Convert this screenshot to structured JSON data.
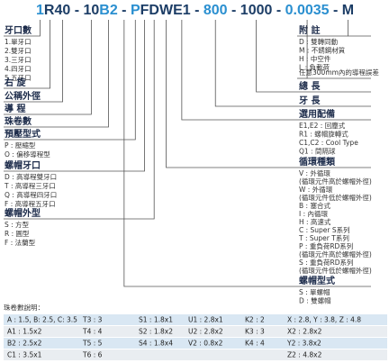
{
  "code": [
    {
      "text": "1",
      "color": "#2a8fd0"
    },
    {
      "text": "R40",
      "color": "#1c3d66"
    },
    {
      "text": " - ",
      "color": "#1c3d66"
    },
    {
      "text": "10",
      "color": "#1c3d66"
    },
    {
      "text": "B2",
      "color": "#2a8fd0"
    },
    {
      "text": " - ",
      "color": "#1c3d66"
    },
    {
      "text": "P",
      "color": "#2a8fd0"
    },
    {
      "text": "F",
      "color": "#1c3d66"
    },
    {
      "text": "D",
      "color": "#1c3d66"
    },
    {
      "text": "W",
      "color": "#1c3d66"
    },
    {
      "text": "E1",
      "color": "#1c3d66"
    },
    {
      "text": " - ",
      "color": "#1c3d66"
    },
    {
      "text": "800",
      "color": "#2a8fd0"
    },
    {
      "text": " - ",
      "color": "#1c3d66"
    },
    {
      "text": "1000",
      "color": "#1c3d66"
    },
    {
      "text": " - ",
      "color": "#1c3d66"
    },
    {
      "text": "0.0035",
      "color": "#2a8fd0"
    },
    {
      "text": " - ",
      "color": "#1c3d66"
    },
    {
      "text": "M",
      "color": "#1c3d66"
    }
  ],
  "left": [
    {
      "heading": "牙口數",
      "items": [
        "1.單牙口",
        "2.雙牙口",
        "3.三牙口",
        "4.四牙口",
        "5.五牙口"
      ]
    },
    {
      "heading": "右 旋",
      "items": []
    },
    {
      "heading": "公稱外徑",
      "items": []
    },
    {
      "heading": "導 程",
      "items": []
    },
    {
      "heading": "珠卷數",
      "items": []
    },
    {
      "heading": "預壓型式",
      "items": [
        "P : 壓縮型",
        "O : 偏移導程型"
      ]
    },
    {
      "heading": "螺帽牙口",
      "items": [
        "D : 高導程雙牙口",
        "T : 高導程三牙口",
        "Q : 高導程四牙口",
        "F : 高導程五牙口"
      ]
    },
    {
      "heading": "螺帽外型",
      "items": [
        "S : 方型",
        "R : 圓型",
        "F : 法蘭型"
      ]
    }
  ],
  "right": [
    {
      "heading": "附 註",
      "items": [
        "D : 雙轉同動",
        "M : 不銹鋼材質",
        "H : 中空件",
        "L : 負載荷"
      ]
    },
    {
      "heading": "任意300mm內的導程誤差",
      "items": []
    },
    {
      "heading": "總 長",
      "items": []
    },
    {
      "heading": "牙 長",
      "items": []
    },
    {
      "heading": "選用配備",
      "items": [
        "E1,E2 : 回塵式",
        "R1 : 螺帽旋轉式",
        "C1,C2 : Cool Type",
        "Q1 : 間隔球"
      ]
    },
    {
      "heading": "循環種類",
      "items": [
        "V : 外循環",
        "(循環元件高於螺帽外徑)",
        "W : 外循環",
        "(循環元件低於螺帽外徑)",
        "B : 塞合式",
        "I : 內循環",
        "H : 高速式",
        "C : Super S系列",
        "T : Super T系列",
        "P : 重負荷RD系列",
        "(循環元件高於螺帽外徑)",
        "S : 重負荷RD系列",
        "(循環元件低於螺帽外徑)"
      ]
    },
    {
      "heading": "螺帽型式",
      "items": [
        "S : 單螺帽",
        "D : 雙螺帽"
      ]
    }
  ],
  "table": {
    "title": "珠卷數說明：",
    "rows": [
      [
        "A : 1.5, B: 2.5, C: 3.5",
        "T3 : 3",
        "S1 : 1.8x1",
        "U1 : 2.8x1",
        "K2 : 2",
        "X : 2.8, Y : 3.8, Z : 4.8"
      ],
      [
        "A1 : 1.5x2",
        "T4 : 4",
        "S2 : 1.8x2",
        "U2 : 2.8x2",
        "K3 : 3",
        "X2 : 2.8x2"
      ],
      [
        "B2 : 2.5x2",
        "T5 : 5",
        "S4 : 1.8x4",
        "V2 : 0.8x2",
        "K4 : 4",
        "Y2 : 3.8x2"
      ],
      [
        "C1 : 3.5x1",
        "T6 : 6",
        null,
        null,
        null,
        "Z2 : 4.8x2"
      ]
    ]
  }
}
